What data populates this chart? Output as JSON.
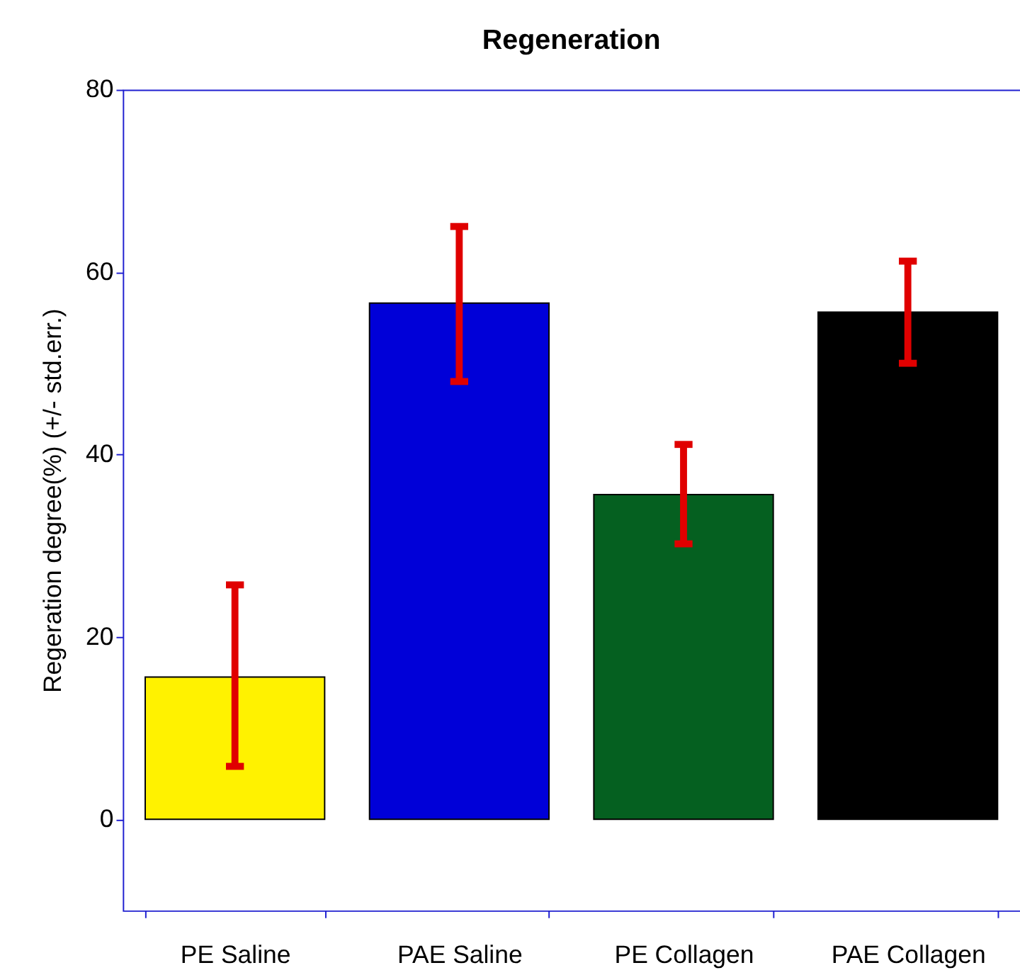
{
  "chart_data": {
    "type": "bar",
    "title": "Regeneration",
    "ylabel": "Regeration degree(%) (+/- std.err.)",
    "categories": [
      "PE Saline",
      "PAE Saline",
      "PE Collagen",
      "PAE Collagen"
    ],
    "values": [
      15.6,
      56.6,
      35.6,
      55.6
    ],
    "colors": [
      "#fff200",
      "#0000d8",
      "#056020",
      "#000000"
    ],
    "errors": [
      [
        5.8,
        25.7
      ],
      [
        48.0,
        65.0
      ],
      [
        30.2,
        41.1
      ],
      [
        50.0,
        61.2
      ]
    ],
    "ylim": [
      -10,
      80
    ],
    "yticks": [
      0,
      20,
      40,
      60,
      80
    ],
    "grid": false
  }
}
